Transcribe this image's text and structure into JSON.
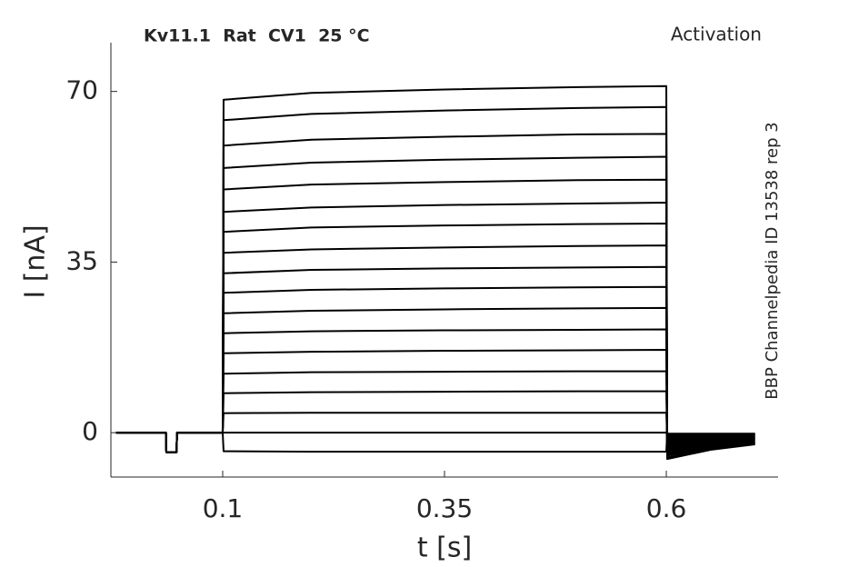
{
  "chart_data": {
    "type": "line",
    "title": "Kv11.1  Rat  CV1  25 °C",
    "subtitle": "Activation",
    "annotation": "BBP Channelpedia ID 13538 rep 3",
    "xlabel": "t [s]",
    "ylabel": "I [nA]",
    "xlim": [
      -0.026,
      0.726
    ],
    "ylim": [
      -9.1,
      80
    ],
    "xticks": [
      0.1,
      0.35,
      0.6
    ],
    "yticks": [
      0,
      35,
      70
    ],
    "grid": false,
    "x": [
      -0.02,
      0.036,
      0.0365,
      0.048,
      0.0485,
      0.1,
      0.101,
      0.2,
      0.35,
      0.5,
      0.6,
      0.601,
      0.65,
      0.7
    ],
    "series": [
      {
        "color": "#000000",
        "values": [
          0,
          0,
          -4,
          -4,
          0,
          0,
          68.3,
          69.7,
          70.4,
          70.9,
          71.1,
          -5.4,
          -3.5,
          -2.4
        ]
      },
      {
        "color": "#000000",
        "values": [
          0,
          0,
          -4,
          -4,
          0,
          0,
          64.1,
          65.4,
          66.1,
          66.6,
          66.8,
          -5.1,
          -3.3,
          -2.3
        ]
      },
      {
        "color": "#000000",
        "values": [
          0,
          0,
          -4,
          -4,
          0,
          0,
          58.9,
          60.1,
          60.7,
          61.2,
          61.3,
          -4.7,
          -3.1,
          -2.1
        ]
      },
      {
        "color": "#000000",
        "values": [
          0,
          0,
          -4,
          -4,
          0,
          0,
          54.3,
          55.4,
          56.0,
          56.4,
          56.6,
          -4.4,
          -2.9,
          -2.0
        ]
      },
      {
        "color": "#000000",
        "values": [
          0,
          0,
          -4,
          -4,
          0,
          0,
          49.9,
          50.9,
          51.4,
          51.8,
          51.9,
          -4.1,
          -2.7,
          -1.8
        ]
      },
      {
        "color": "#000000",
        "values": [
          0,
          0,
          -4,
          -4,
          0,
          0,
          45.3,
          46.2,
          46.7,
          47.0,
          47.2,
          -3.8,
          -2.5,
          -1.7
        ]
      },
      {
        "color": "#000000",
        "values": [
          0,
          0,
          -4,
          -4,
          0,
          0,
          41.2,
          42.1,
          42.5,
          42.8,
          42.9,
          -3.5,
          -2.3,
          -1.6
        ]
      },
      {
        "color": "#000000",
        "values": [
          0,
          0,
          -4,
          -4,
          0,
          0,
          36.9,
          37.6,
          38.0,
          38.3,
          38.4,
          -3.2,
          -2.1,
          -1.4
        ]
      },
      {
        "color": "#000000",
        "values": [
          0,
          0,
          -4,
          -4,
          0,
          0,
          32.7,
          33.4,
          33.7,
          33.9,
          34.0,
          -2.9,
          -1.9,
          -1.3
        ]
      },
      {
        "color": "#000000",
        "values": [
          0,
          0,
          -4,
          -4,
          0,
          0,
          28.7,
          29.3,
          29.6,
          29.8,
          29.9,
          -2.6,
          -1.7,
          -1.2
        ]
      },
      {
        "color": "#000000",
        "values": [
          0,
          0,
          -4,
          -4,
          0,
          0,
          24.5,
          25.0,
          25.3,
          25.5,
          25.6,
          -2.3,
          -1.5,
          -1.1
        ]
      },
      {
        "color": "#000000",
        "values": [
          0,
          0,
          -4,
          -4,
          0,
          0,
          20.4,
          20.8,
          21.0,
          21.1,
          21.2,
          -2.0,
          -1.3,
          -0.9
        ]
      },
      {
        "color": "#000000",
        "values": [
          0,
          0,
          -4,
          -4,
          0,
          0,
          16.3,
          16.6,
          16.8,
          16.9,
          17.0,
          -1.7,
          -1.1,
          -0.8
        ]
      },
      {
        "color": "#000000",
        "values": [
          0,
          0,
          -4,
          -4,
          0,
          0,
          12.1,
          12.4,
          12.5,
          12.6,
          12.6,
          -1.4,
          -0.9,
          -0.7
        ]
      },
      {
        "color": "#000000",
        "values": [
          0,
          0,
          -4,
          -4,
          0,
          0,
          8.1,
          8.3,
          8.4,
          8.5,
          8.5,
          -1.1,
          -0.7,
          -0.5
        ]
      },
      {
        "color": "#000000",
        "values": [
          0,
          0,
          -4,
          -4,
          0,
          0,
          4.0,
          4.1,
          4.1,
          4.1,
          4.1,
          -0.8,
          -0.5,
          -0.4
        ]
      },
      {
        "color": "#000000",
        "values": [
          0,
          0,
          -4,
          -4,
          0,
          0,
          0,
          0,
          0,
          0,
          0,
          -0.5,
          -0.4,
          -0.3
        ]
      },
      {
        "color": "#000000",
        "values": [
          0,
          0,
          -4,
          -4,
          0,
          0,
          -3.8,
          -3.9,
          -3.9,
          -3.9,
          -3.9,
          -0.2,
          -0.2,
          -0.2
        ]
      }
    ]
  }
}
